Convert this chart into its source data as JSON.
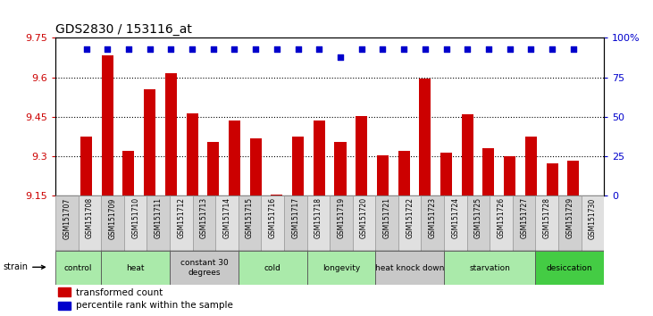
{
  "title": "GDS2830 / 153116_at",
  "samples": [
    "GSM151707",
    "GSM151708",
    "GSM151709",
    "GSM151710",
    "GSM151711",
    "GSM151712",
    "GSM151713",
    "GSM151714",
    "GSM151715",
    "GSM151716",
    "GSM151717",
    "GSM151718",
    "GSM151719",
    "GSM151720",
    "GSM151721",
    "GSM151722",
    "GSM151723",
    "GSM151724",
    "GSM151725",
    "GSM151726",
    "GSM151727",
    "GSM151728",
    "GSM151729",
    "GSM151730"
  ],
  "bar_values": [
    9.375,
    9.685,
    9.32,
    9.555,
    9.615,
    9.465,
    9.355,
    9.435,
    9.37,
    9.155,
    9.375,
    9.435,
    9.355,
    9.455,
    9.305,
    9.32,
    9.595,
    9.315,
    9.46,
    9.33,
    9.3,
    9.375,
    9.275,
    9.285
  ],
  "dot_pct": [
    93,
    93,
    93,
    93,
    93,
    93,
    93,
    93,
    93,
    93,
    93,
    93,
    88,
    93,
    93,
    93,
    93,
    93,
    93,
    93,
    93,
    93,
    93,
    93
  ],
  "bar_color": "#cc0000",
  "dot_color": "#0000cc",
  "ylim_left": [
    9.15,
    9.75
  ],
  "ylim_right": [
    0,
    100
  ],
  "yticks_left": [
    9.15,
    9.3,
    9.45,
    9.6,
    9.75
  ],
  "ytick_labels_left": [
    "9.15",
    "9.3",
    "9.45",
    "9.6",
    "9.75"
  ],
  "yticks_right": [
    0,
    25,
    50,
    75,
    100
  ],
  "ytick_labels_right": [
    "0",
    "25",
    "50",
    "75",
    "100%"
  ],
  "gridline_ticks": [
    9.3,
    9.45,
    9.6
  ],
  "groups": [
    {
      "label": "control",
      "start": 0,
      "end": 2,
      "color": "#aaeaaa"
    },
    {
      "label": "heat",
      "start": 2,
      "end": 5,
      "color": "#aaeaaa"
    },
    {
      "label": "constant 30\ndegrees",
      "start": 5,
      "end": 8,
      "color": "#c8c8c8"
    },
    {
      "label": "cold",
      "start": 8,
      "end": 11,
      "color": "#aaeaaa"
    },
    {
      "label": "longevity",
      "start": 11,
      "end": 14,
      "color": "#aaeaaa"
    },
    {
      "label": "heat knock down",
      "start": 14,
      "end": 17,
      "color": "#c8c8c8"
    },
    {
      "label": "starvation",
      "start": 17,
      "end": 21,
      "color": "#aaeaaa"
    },
    {
      "label": "desiccation",
      "start": 21,
      "end": 24,
      "color": "#44cc44"
    }
  ],
  "legend_bar_label": "transformed count",
  "legend_dot_label": "percentile rank within the sample",
  "bar_width": 0.55,
  "title_fontsize": 10,
  "left_tick_color": "#cc0000",
  "right_tick_color": "#0000cc",
  "xtick_box_colors": [
    "#d0d0d0",
    "#e0e0e0"
  ]
}
